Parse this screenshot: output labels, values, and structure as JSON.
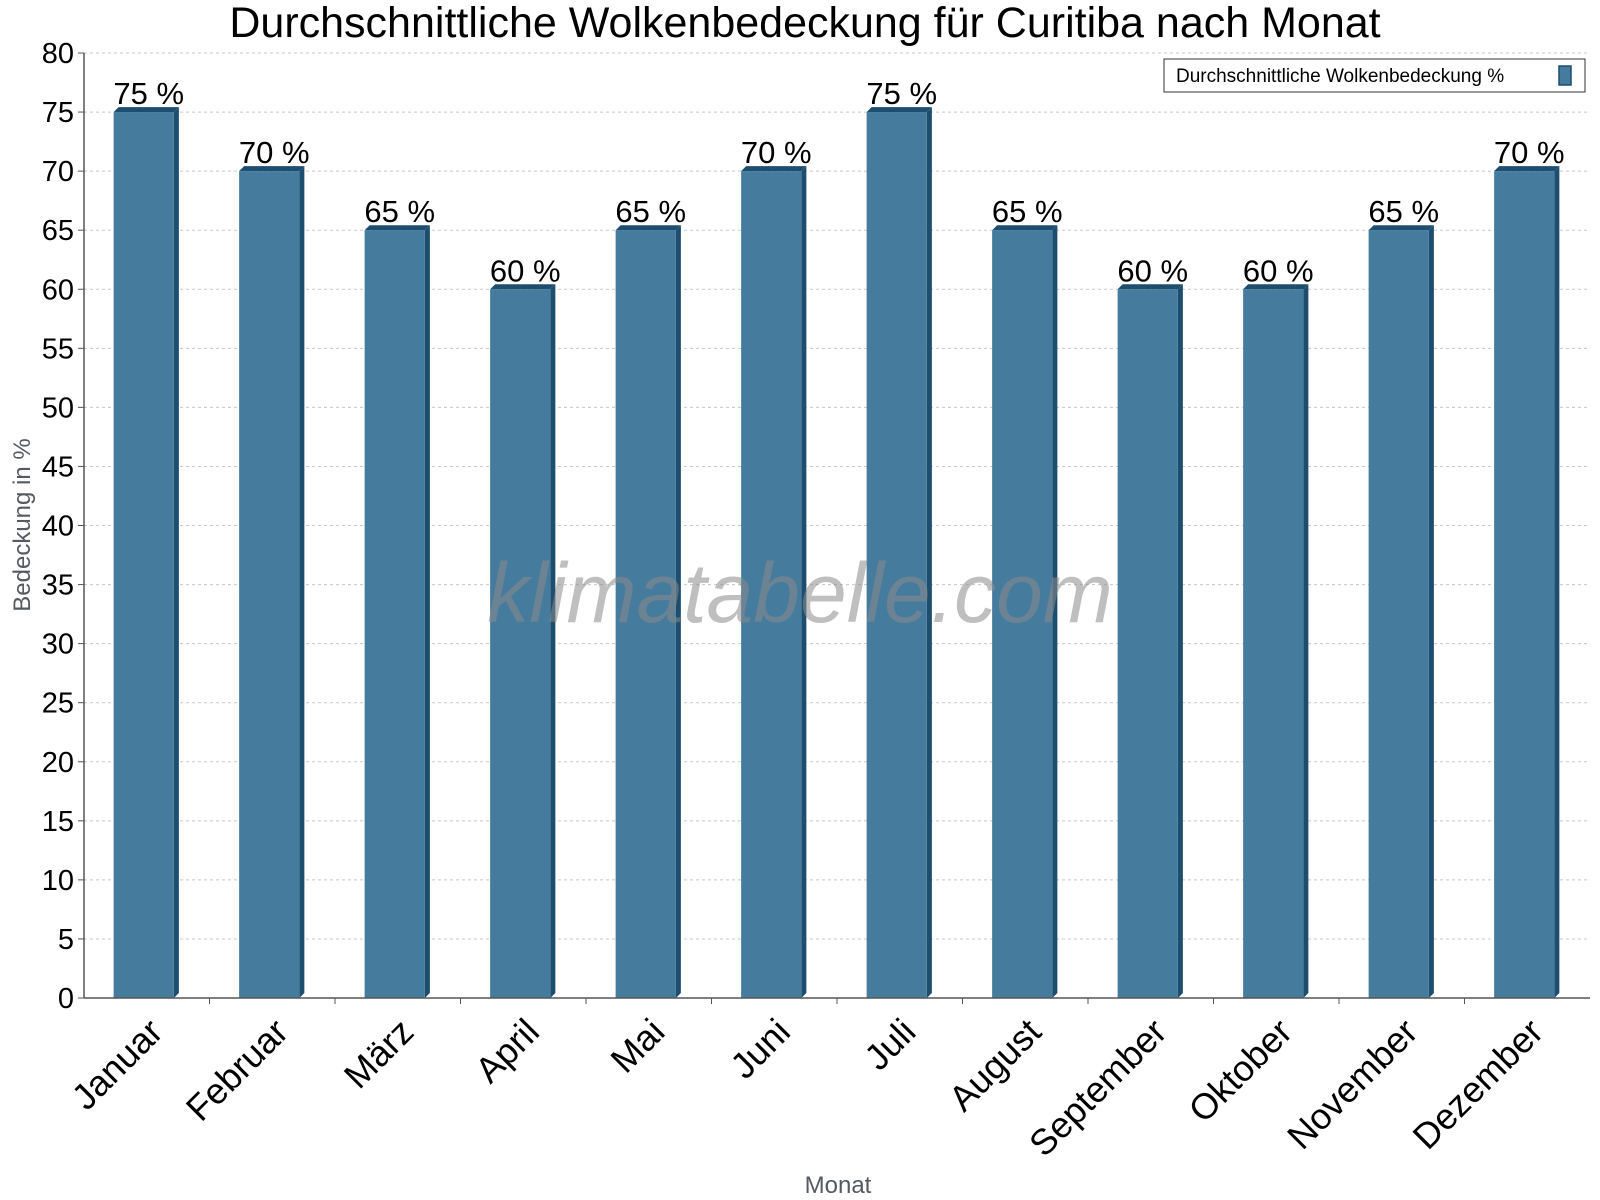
{
  "chart_data": {
    "type": "bar",
    "title": "Durchschnittliche Wolkenbedeckung für Curitiba nach Monat",
    "xlabel": "Monat",
    "ylabel": "Bedeckung in %",
    "ylim": [
      0,
      80
    ],
    "y_ticks": [
      0,
      5,
      10,
      15,
      20,
      25,
      30,
      35,
      40,
      45,
      50,
      55,
      60,
      65,
      70,
      75,
      80
    ],
    "grid": true,
    "legend_position": "top-right",
    "categories": [
      "Januar",
      "Februar",
      "März",
      "April",
      "Mai",
      "Juni",
      "Juli",
      "August",
      "September",
      "Oktober",
      "November",
      "Dezember"
    ],
    "series": [
      {
        "name": "Durchschnittliche Wolkenbedeckung %",
        "values": [
          75,
          70,
          65,
          60,
          65,
          70,
          75,
          65,
          60,
          60,
          65,
          70
        ],
        "data_labels": [
          "75 %",
          "70 %",
          "65 %",
          "60 %",
          "65 %",
          "70 %",
          "75 %",
          "65 %",
          "60 %",
          "60 %",
          "65 %",
          "70 %"
        ],
        "color": "#457b9d",
        "edge_color": "#1d4e6f"
      }
    ],
    "watermark": "klimatabelle.com"
  }
}
